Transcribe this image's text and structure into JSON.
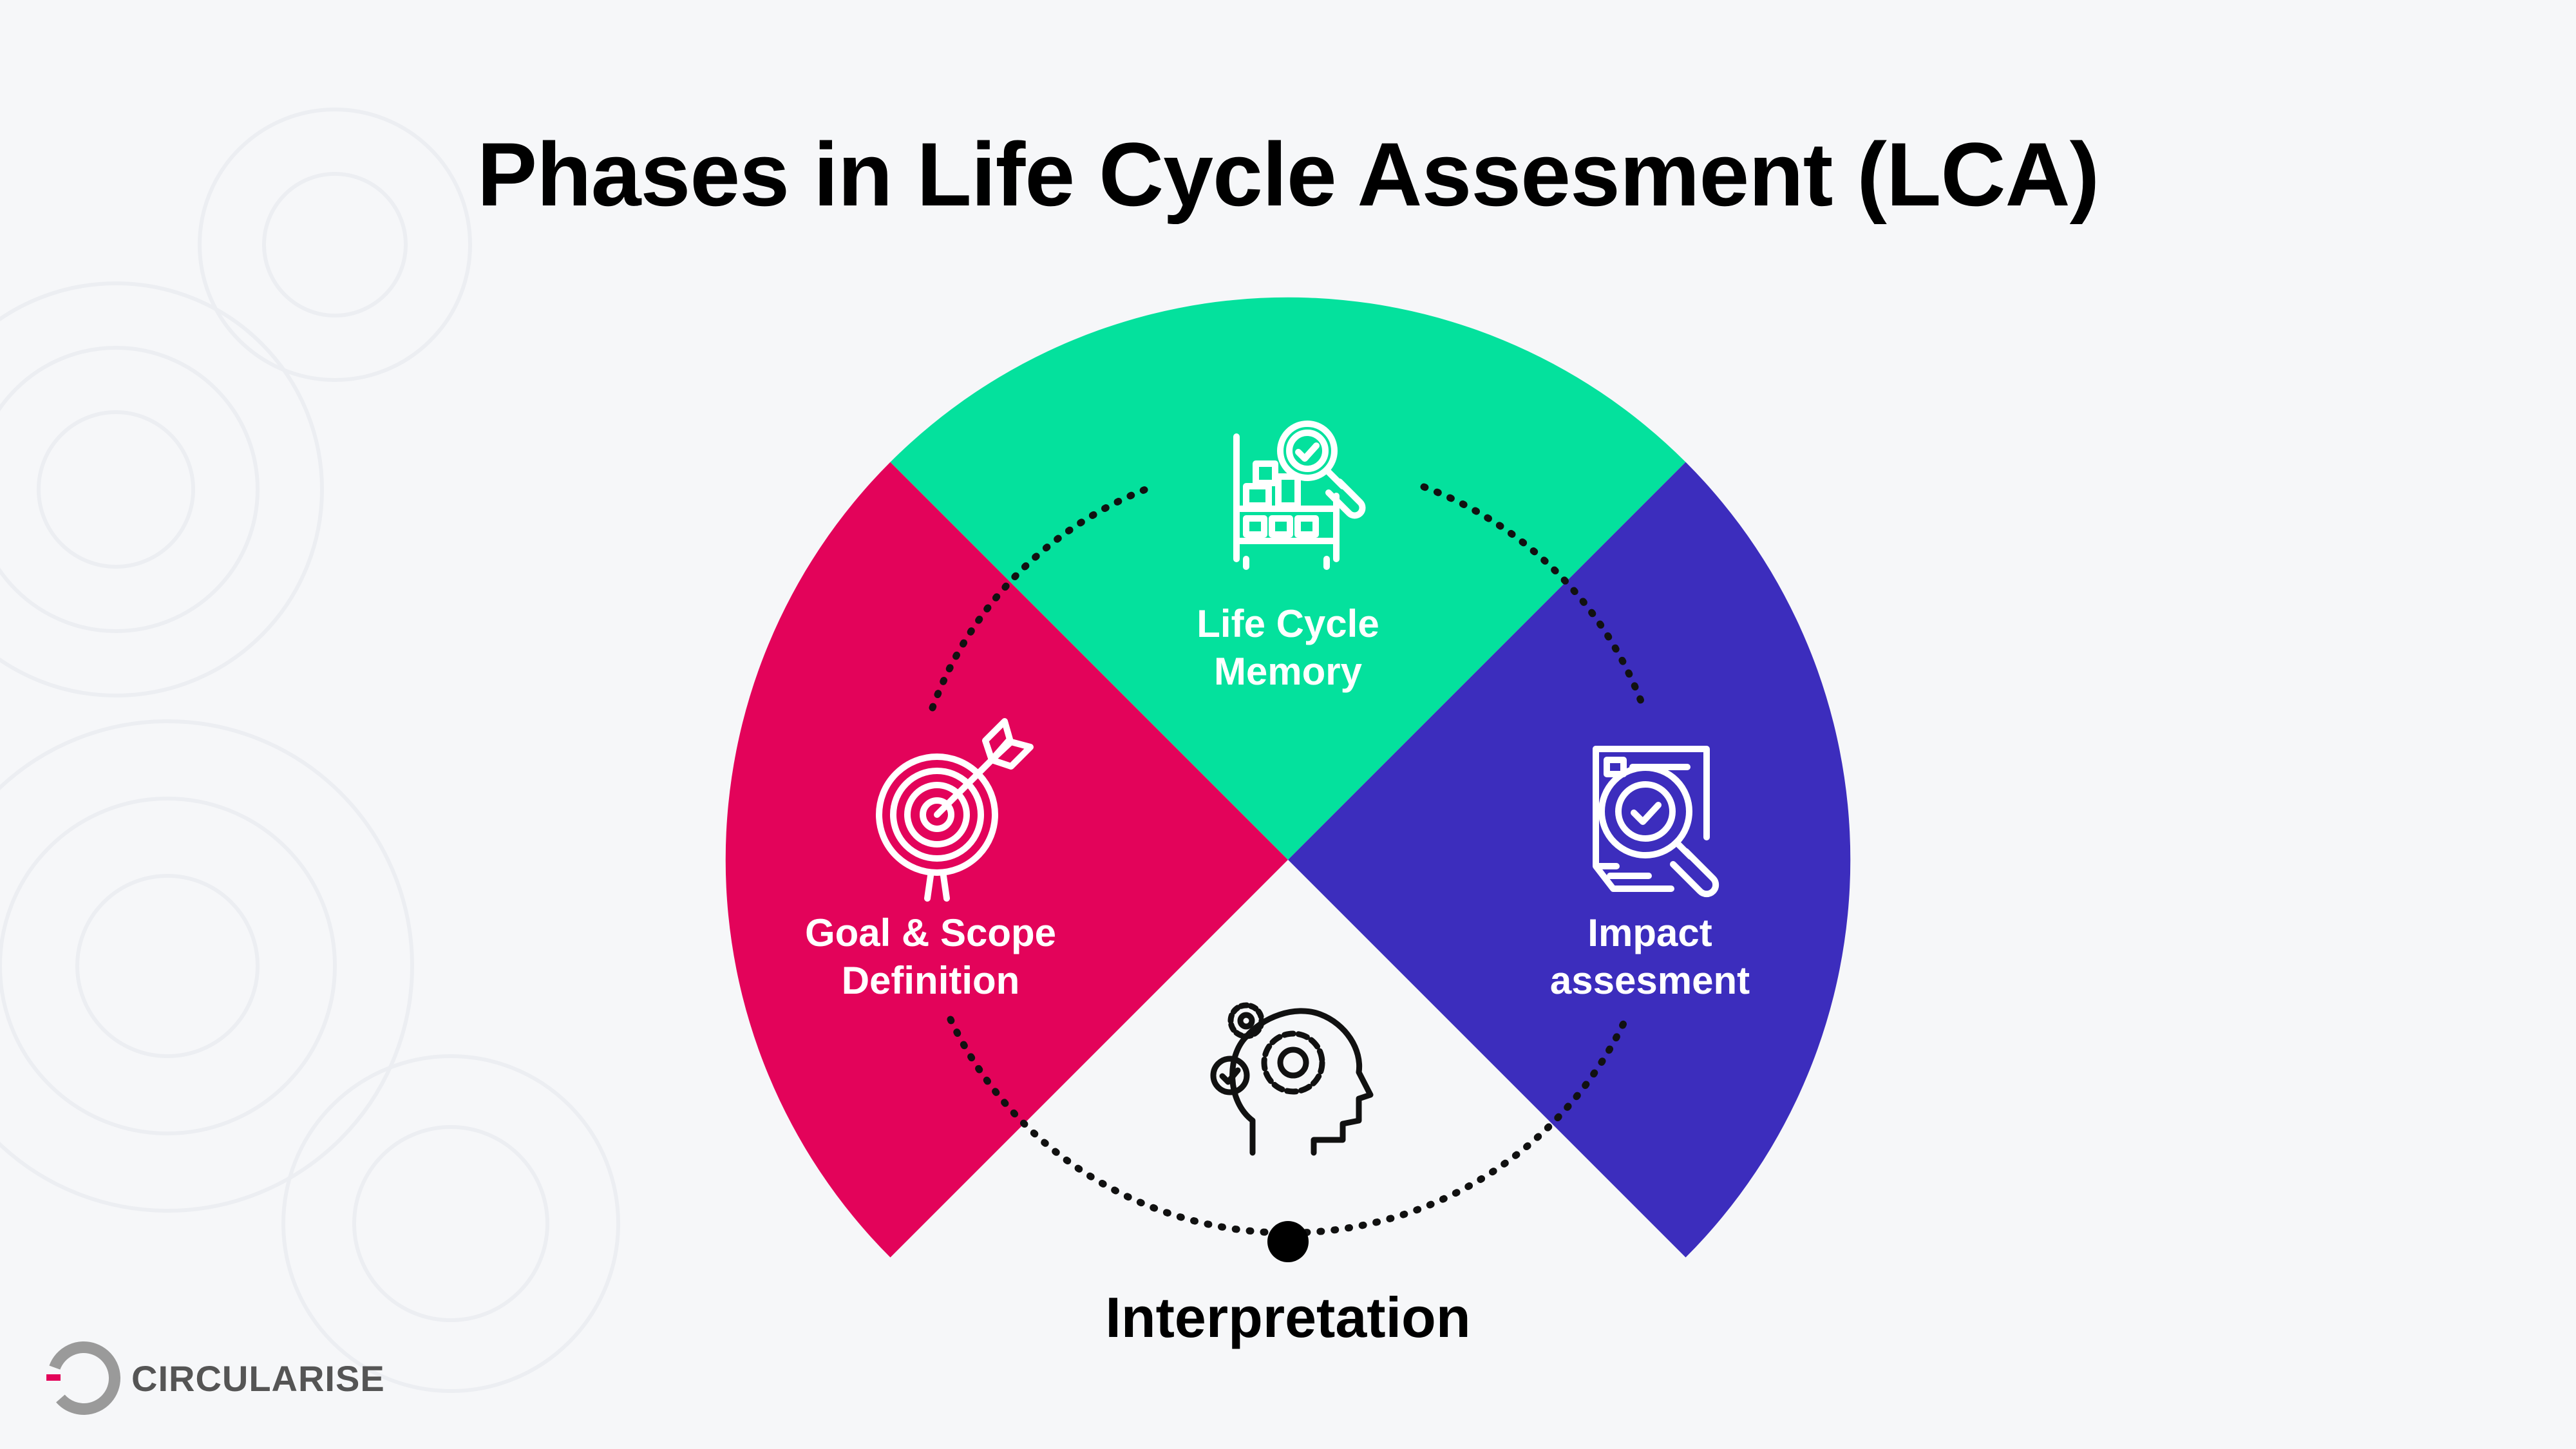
{
  "title": "Phases in Life Cycle Assesment (LCA)",
  "phases": [
    {
      "id": "goal-scope",
      "line1": "Goal & Scope",
      "line2": "Definition",
      "color": "#e3035a",
      "icon": "target-icon"
    },
    {
      "id": "life-cycle",
      "line1": "Life Cycle",
      "line2": "Memory",
      "color": "#04e19d",
      "icon": "inventory-shelf-magnifier-icon"
    },
    {
      "id": "impact",
      "line1": "Impact",
      "line2": "assesment",
      "color": "#3c2dbd",
      "icon": "document-magnifier-icon"
    }
  ],
  "center": {
    "label": "Interpretation",
    "icon": "head-gears-icon"
  },
  "brand": {
    "name": "CIRCULARISE"
  },
  "colors": {
    "background": "#f6f7f9",
    "text": "#000000",
    "icon_line": "#ffffff"
  }
}
